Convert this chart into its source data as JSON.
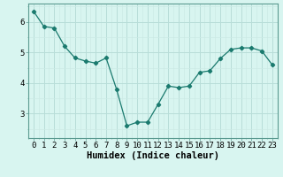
{
  "x": [
    0,
    1,
    2,
    3,
    4,
    5,
    6,
    7,
    8,
    9,
    10,
    11,
    12,
    13,
    14,
    15,
    16,
    17,
    18,
    19,
    20,
    21,
    22,
    23
  ],
  "y": [
    6.35,
    5.85,
    5.8,
    5.2,
    4.82,
    4.72,
    4.65,
    4.82,
    3.8,
    2.6,
    2.72,
    2.72,
    3.3,
    3.9,
    3.85,
    3.9,
    4.35,
    4.4,
    4.8,
    5.1,
    5.15,
    5.15,
    5.05,
    4.6
  ],
  "line_color": "#1a7a6e",
  "marker": "D",
  "marker_size": 2.2,
  "bg_color": "#d8f5f0",
  "grid_color_major": "#b8ddd8",
  "grid_color_minor": "#cceae5",
  "xlabel": "Humidex (Indice chaleur)",
  "xlim": [
    -0.5,
    23.5
  ],
  "ylim": [
    2.2,
    6.6
  ],
  "yticks": [
    3,
    4,
    5,
    6
  ],
  "xticks": [
    0,
    1,
    2,
    3,
    4,
    5,
    6,
    7,
    8,
    9,
    10,
    11,
    12,
    13,
    14,
    15,
    16,
    17,
    18,
    19,
    20,
    21,
    22,
    23
  ],
  "xlabel_fontsize": 7.5,
  "tick_fontsize": 6.5
}
